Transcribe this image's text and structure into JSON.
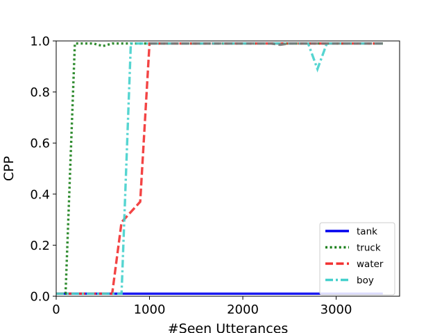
{
  "chart_data": {
    "type": "line",
    "xlabel": "#Seen Utterances",
    "ylabel": "CPP",
    "xlim": [
      0,
      3680
    ],
    "ylim": [
      0,
      1.0
    ],
    "x_ticks": [
      0,
      1000,
      2000,
      3000
    ],
    "y_ticks": [
      0.0,
      0.2,
      0.4,
      0.6,
      0.8,
      1.0
    ],
    "x_tick_labels": [
      "0",
      "1000",
      "2000",
      "3000"
    ],
    "y_tick_labels": [
      "0.0",
      "0.2",
      "0.4",
      "0.6",
      "0.8",
      "1.0"
    ],
    "grid": false,
    "legend_position": "bottom-right",
    "series": [
      {
        "name": "tank",
        "color": "#0000ee",
        "dash": "solid",
        "points": [
          [
            0,
            0.01
          ],
          [
            3500,
            0.01
          ]
        ]
      },
      {
        "name": "truck",
        "color": "#1a7f1a",
        "dash": "dotted",
        "points": [
          [
            0,
            0.01
          ],
          [
            100,
            0.01
          ],
          [
            200,
            0.99
          ],
          [
            400,
            0.99
          ],
          [
            500,
            0.98
          ],
          [
            600,
            0.99
          ],
          [
            3500,
            0.99
          ]
        ]
      },
      {
        "name": "water",
        "color": "#f23030",
        "dash": "dashed",
        "points": [
          [
            0,
            0.01
          ],
          [
            600,
            0.01
          ],
          [
            700,
            0.29
          ],
          [
            800,
            0.33
          ],
          [
            900,
            0.37
          ],
          [
            1000,
            0.99
          ],
          [
            3500,
            0.99
          ]
        ]
      },
      {
        "name": "boy",
        "color": "#44d0cc",
        "dash": "dashdot",
        "points": [
          [
            0,
            0.01
          ],
          [
            700,
            0.01
          ],
          [
            800,
            0.99
          ],
          [
            2700,
            0.99
          ],
          [
            2800,
            0.89
          ],
          [
            2900,
            0.99
          ],
          [
            3500,
            0.99
          ]
        ]
      },
      {
        "name": "",
        "color": "#777777",
        "dash": "dashed",
        "points": [
          [
            1000,
            0.99
          ],
          [
            2300,
            0.99
          ],
          [
            2400,
            0.985
          ],
          [
            2500,
            0.99
          ],
          [
            3500,
            0.99
          ]
        ]
      }
    ]
  }
}
